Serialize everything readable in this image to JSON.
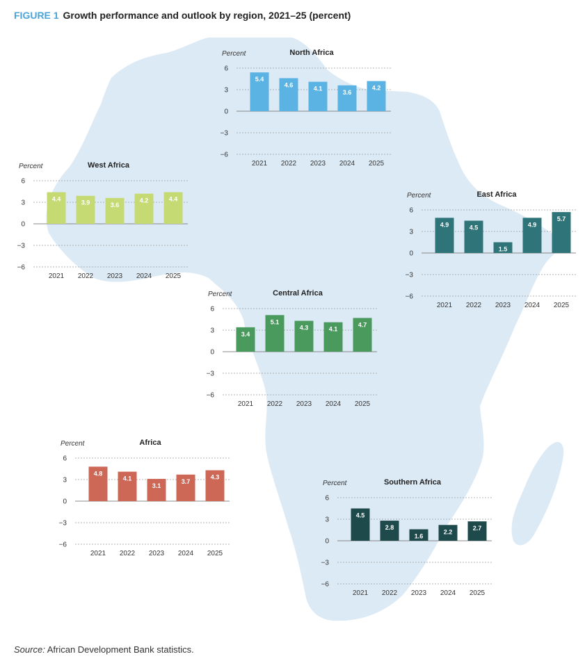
{
  "figure": {
    "tag": "FIGURE 1",
    "title": "Growth performance and outlook by region, 2021–25 (percent)",
    "source_label": "Source:",
    "source_text": "African Development Bank statistics."
  },
  "colors": {
    "map": "#dceaf5",
    "grid": "#9a9a9a",
    "North Africa": "#5ab3e3",
    "West Africa": "#c6da73",
    "East Africa": "#2f7478",
    "Central Africa": "#4a9a5e",
    "Africa": "#cd6856",
    "Southern Africa": "#1f4a4c"
  },
  "chart_data": [
    {
      "type": "bar",
      "title": "North Africa",
      "ylabel": "Percent",
      "categories": [
        "2021",
        "2022",
        "2023",
        "2024",
        "2025"
      ],
      "values": [
        5.4,
        4.6,
        4.1,
        3.6,
        4.2
      ],
      "ylim": [
        -6,
        6
      ],
      "yticks": [
        "6",
        "3",
        "0",
        "−3",
        "−6"
      ],
      "grid": true
    },
    {
      "type": "bar",
      "title": "West Africa",
      "ylabel": "Percent",
      "categories": [
        "2021",
        "2022",
        "2023",
        "2024",
        "2025"
      ],
      "values": [
        4.4,
        3.9,
        3.6,
        4.2,
        4.4
      ],
      "ylim": [
        -6,
        6
      ],
      "yticks": [
        "6",
        "3",
        "0",
        "−3",
        "−6"
      ],
      "grid": true
    },
    {
      "type": "bar",
      "title": "East Africa",
      "ylabel": "Percent",
      "categories": [
        "2021",
        "2022",
        "2023",
        "2024",
        "2025"
      ],
      "values": [
        4.9,
        4.5,
        1.5,
        4.9,
        5.7
      ],
      "ylim": [
        -6,
        6
      ],
      "yticks": [
        "6",
        "3",
        "0",
        "−3",
        "−6"
      ],
      "grid": true
    },
    {
      "type": "bar",
      "title": "Central Africa",
      "ylabel": "Percent",
      "categories": [
        "2021",
        "2022",
        "2023",
        "2024",
        "2025"
      ],
      "values": [
        3.4,
        5.1,
        4.3,
        4.1,
        4.7
      ],
      "ylim": [
        -6,
        6
      ],
      "yticks": [
        "6",
        "3",
        "0",
        "−3",
        "−6"
      ],
      "grid": true
    },
    {
      "type": "bar",
      "title": "Africa",
      "ylabel": "Percent",
      "categories": [
        "2021",
        "2022",
        "2023",
        "2024",
        "2025"
      ],
      "values": [
        4.8,
        4.1,
        3.1,
        3.7,
        4.3
      ],
      "ylim": [
        -6,
        6
      ],
      "yticks": [
        "6",
        "3",
        "0",
        "−3",
        "−6"
      ],
      "grid": true
    },
    {
      "type": "bar",
      "title": "Southern Africa",
      "ylabel": "Percent",
      "categories": [
        "2021",
        "2022",
        "2023",
        "2024",
        "2025"
      ],
      "values": [
        4.5,
        2.8,
        1.6,
        2.2,
        2.7
      ],
      "ylim": [
        -6,
        6
      ],
      "yticks": [
        "6",
        "3",
        "0",
        "−3",
        "−6"
      ],
      "grid": true
    }
  ]
}
